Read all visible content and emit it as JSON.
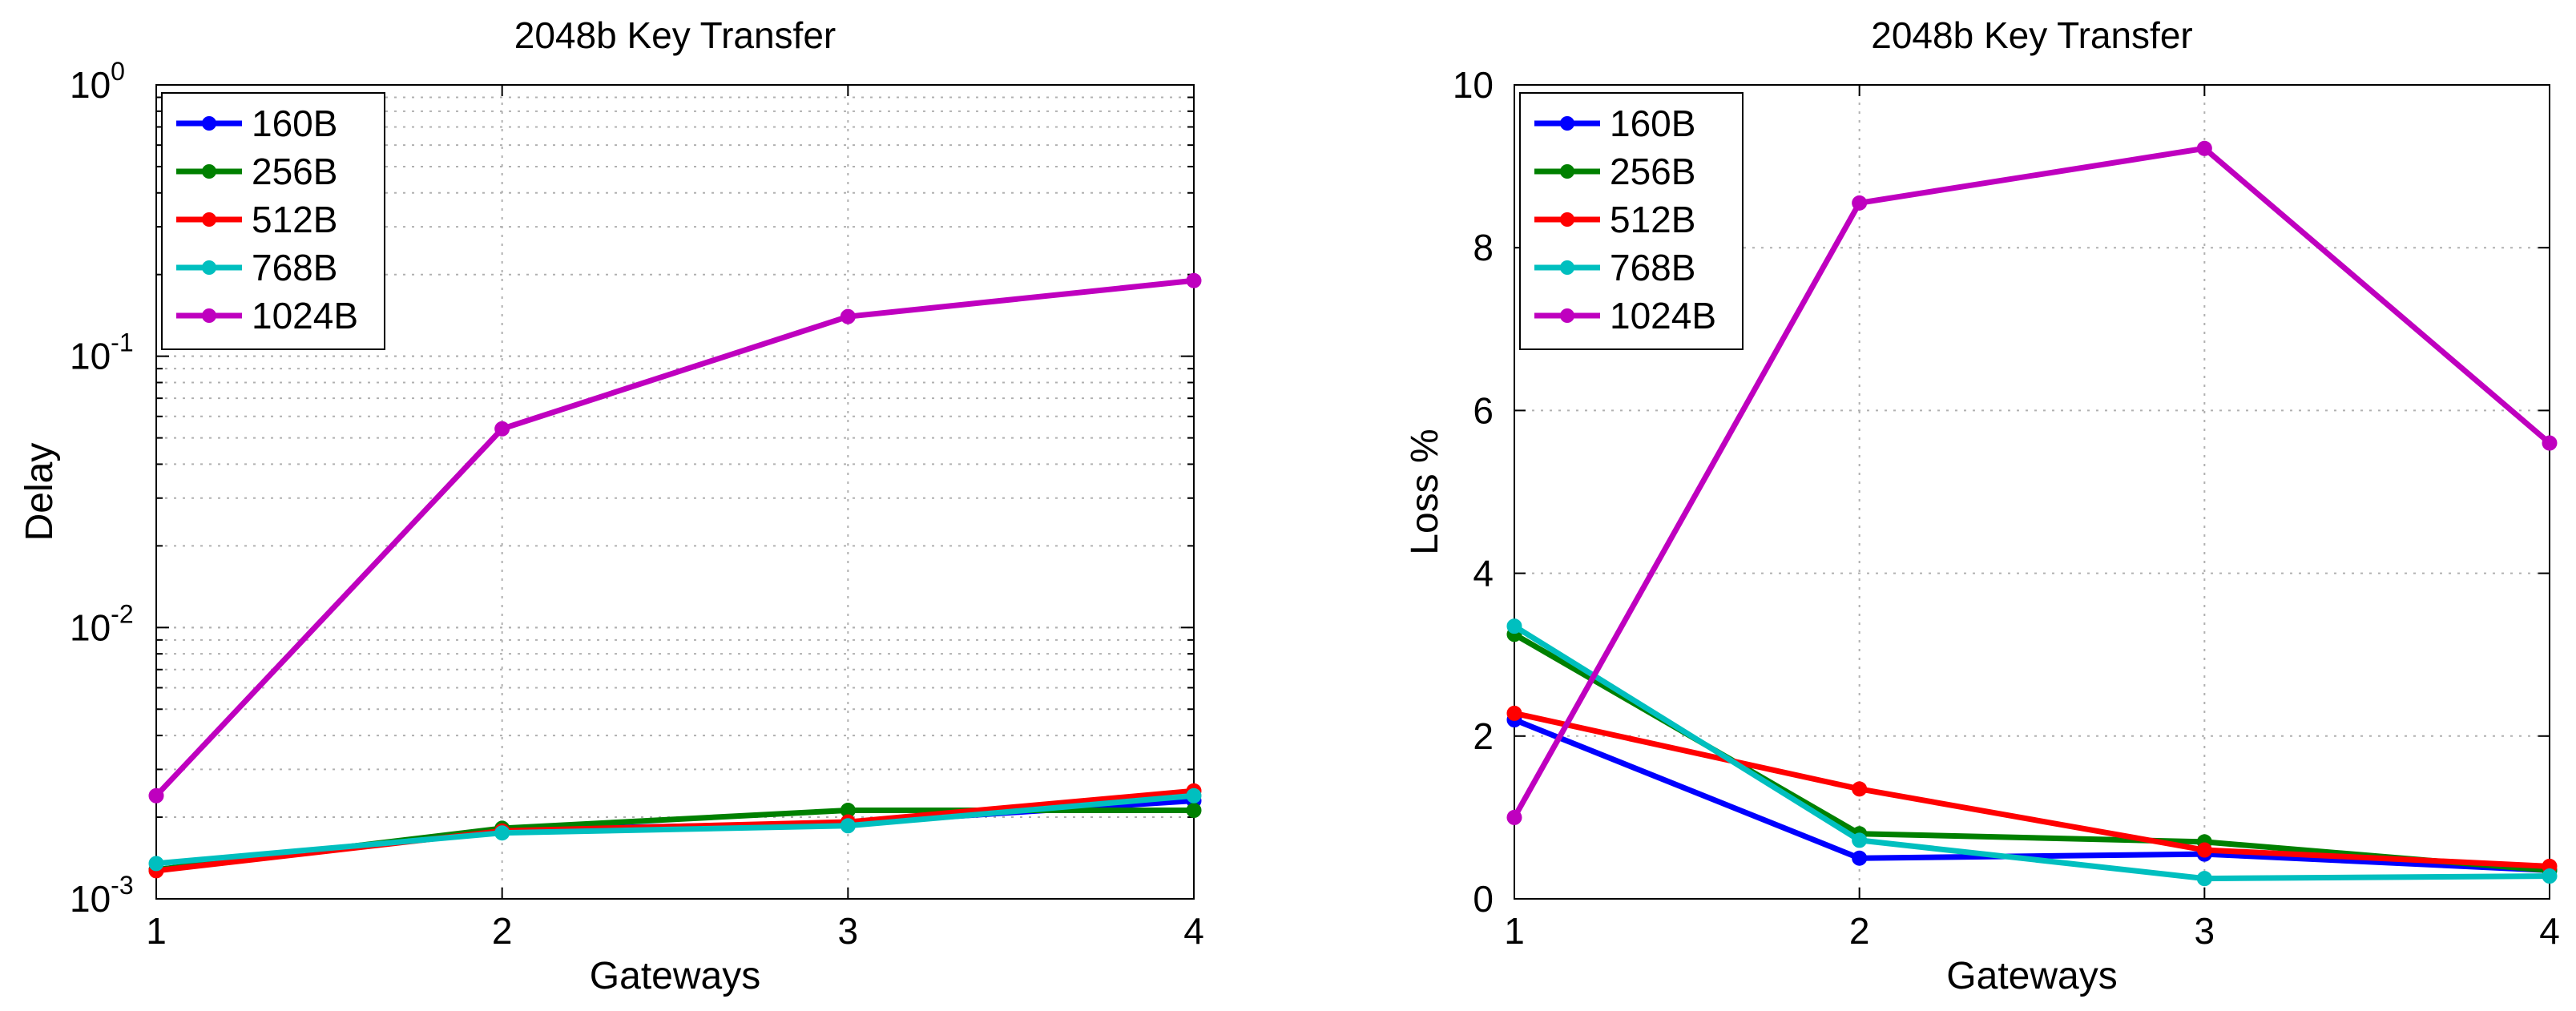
{
  "chart_data": [
    {
      "type": "line",
      "title": "2048b Key Transfer",
      "xlabel": "Gateways",
      "ylabel": "Delay",
      "yscale": "log",
      "x": [
        1,
        2,
        3,
        4
      ],
      "xlim": [
        1,
        4
      ],
      "ylim": [
        0.001,
        1
      ],
      "xticks": [
        "1",
        "2",
        "3",
        "4"
      ],
      "yticks": [
        {
          "base": "10",
          "exp": "-3"
        },
        {
          "base": "10",
          "exp": "-2"
        },
        {
          "base": "10",
          "exp": "-1"
        },
        {
          "base": "10",
          "exp": "0"
        }
      ],
      "grid": true,
      "legend_position": "top-left",
      "series": [
        {
          "name": "160B",
          "color": "#0000ff",
          "values": [
            0.00128,
            0.0018,
            0.0019,
            0.0023
          ]
        },
        {
          "name": "256B",
          "color": "#008000",
          "values": [
            0.00128,
            0.00182,
            0.00212,
            0.00212
          ]
        },
        {
          "name": "512B",
          "color": "#ff0000",
          "values": [
            0.00127,
            0.00178,
            0.00192,
            0.0025
          ]
        },
        {
          "name": "768B",
          "color": "#00bfbf",
          "values": [
            0.00135,
            0.00175,
            0.00186,
            0.0024
          ]
        },
        {
          "name": "1024B",
          "color": "#bf00bf",
          "values": [
            0.0024,
            0.054,
            0.14,
            0.19
          ]
        }
      ]
    },
    {
      "type": "line",
      "title": "2048b Key Transfer",
      "xlabel": "Gateways",
      "ylabel": "Loss %",
      "yscale": "linear",
      "x": [
        1,
        2,
        3,
        4
      ],
      "xlim": [
        1,
        4
      ],
      "ylim": [
        0,
        10
      ],
      "xticks": [
        "1",
        "2",
        "3",
        "4"
      ],
      "yticks": [
        "0",
        "2",
        "4",
        "6",
        "8",
        "10"
      ],
      "grid": true,
      "legend_position": "top-left",
      "series": [
        {
          "name": "160B",
          "color": "#0000ff",
          "values": [
            2.2,
            0.5,
            0.55,
            0.35
          ]
        },
        {
          "name": "256B",
          "color": "#008000",
          "values": [
            3.25,
            0.8,
            0.7,
            0.35
          ]
        },
        {
          "name": "512B",
          "color": "#ff0000",
          "values": [
            2.28,
            1.35,
            0.6,
            0.4
          ]
        },
        {
          "name": "768B",
          "color": "#00bfbf",
          "values": [
            3.35,
            0.72,
            0.25,
            0.28
          ]
        },
        {
          "name": "1024B",
          "color": "#bf00bf",
          "values": [
            1.0,
            8.55,
            9.22,
            5.6
          ]
        }
      ]
    }
  ]
}
